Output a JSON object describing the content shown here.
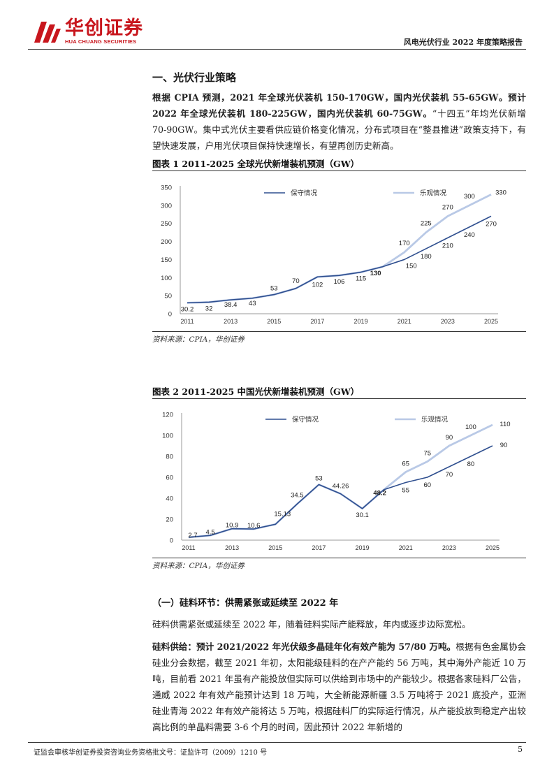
{
  "header": {
    "logo_cn": "华创证券",
    "logo_en": "HUA CHUANG SECURITIES",
    "report_title": "风电光伏行业 2022 年度策略报告"
  },
  "section1": {
    "heading": "一、光伏行业策略",
    "para_bold": "根据 CPIA 预测，2021 年全球光伏装机 150-170GW，国内光伏装机 55-65GW。预计 2022 年全球光伏装机 180-225GW，国内光伏装机 60-75GW。",
    "para_rest": "“十四五”年均光伏新增 70-90GW。集中式光伏主要看供应链价格变化情况，分布式项目在“整县推进”政策支持下，有望快速发展，户用光伏项目保持快速增长，有望再创历史新高。"
  },
  "figure1": {
    "title": "图表 1    2011-2025 全球光伏新增装机预测（GW）",
    "source": "资料来源：CPIA，华创证券"
  },
  "figure2": {
    "title": "图表 2    2011-2025 中国光伏新增装机预测（GW）",
    "source": "资料来源：CPIA，华创证券"
  },
  "chart_data": [
    {
      "type": "line",
      "title": "2011-2025 全球光伏新增装机预测（GW）",
      "x": [
        2011,
        2012,
        2013,
        2014,
        2015,
        2016,
        2017,
        2018,
        2019,
        2020,
        2021,
        2022,
        2023,
        2024,
        2025
      ],
      "x_tick_labels": [
        "2011",
        "2013",
        "2015",
        "2017",
        "2019",
        "2021",
        "2023",
        "2025"
      ],
      "y_ticks": [
        0,
        50,
        100,
        150,
        200,
        250,
        300,
        350
      ],
      "ylim": [
        0,
        350
      ],
      "legend_position": "top",
      "grid": false,
      "series": [
        {
          "name": "保守情况",
          "color": "#2f4f8f",
          "values": [
            30.2,
            32,
            38.4,
            43,
            53,
            70,
            102,
            106,
            115,
            130,
            150,
            180,
            210,
            240,
            270
          ]
        },
        {
          "name": "乐观情况",
          "color": "#b9c9e6",
          "values": [
            30.2,
            32,
            38.4,
            43,
            53,
            70,
            102,
            106,
            115,
            130,
            170,
            225,
            270,
            300,
            330
          ]
        }
      ],
      "data_labels": [
        "30.2",
        "32",
        "38.4",
        "43",
        "53",
        "70",
        "102",
        "106",
        "115",
        "130",
        "150",
        "180",
        "210",
        "240",
        "270",
        "170",
        "225",
        "270",
        "300",
        "330"
      ]
    },
    {
      "type": "line",
      "title": "2011-2025 中国光伏新增装机预测（GW）",
      "x": [
        2011,
        2012,
        2013,
        2014,
        2015,
        2016,
        2017,
        2018,
        2019,
        2020,
        2021,
        2022,
        2023,
        2024,
        2025
      ],
      "x_tick_labels": [
        "2011",
        "2013",
        "2015",
        "2017",
        "2019",
        "2021",
        "2023",
        "2025"
      ],
      "y_ticks": [
        0,
        20,
        40,
        60,
        80,
        100,
        120
      ],
      "ylim": [
        0,
        120
      ],
      "legend_position": "top",
      "grid": false,
      "series": [
        {
          "name": "保守情况",
          "color": "#2f4f8f",
          "values": [
            2.7,
            4.5,
            10.9,
            10.6,
            15.13,
            34.5,
            53,
            44.26,
            30.1,
            48.2,
            55,
            60,
            70,
            80,
            90
          ]
        },
        {
          "name": "乐观情况",
          "color": "#b9c9e6",
          "values": [
            2.7,
            4.5,
            10.9,
            10.6,
            15.13,
            34.5,
            53,
            44.26,
            30.1,
            48.2,
            65,
            75,
            90,
            100,
            110
          ]
        }
      ],
      "data_labels": [
        "2.7",
        "4.5",
        "10.9",
        "10.6",
        "15.13",
        "34.5",
        "53",
        "44.26",
        "30.1",
        "48.2",
        "55",
        "60",
        "70",
        "80",
        "90",
        "65",
        "75",
        "90",
        "100",
        "110"
      ]
    }
  ],
  "section2": {
    "heading": "（一）硅料环节：供需紧张或延续至 2022 年",
    "para1": "硅料供需紧张或延续至 2022 年，随着硅料实际产能释放，年内或逐步边际宽松。",
    "para2_bold": "硅料供给：预计 2021/2022 年光伏级多晶硅年化有效产能为 57/80 万吨。",
    "para2_rest": "根据有色金属协会硅业分会数据，截至 2021 年初，太阳能级硅料的在产产能约 56 万吨，其中海外产能近 10 万吨，目前看 2021 年虽有产能投放但实际可以供给到市场中的产能较少。根据各家硅料厂公告，通威 2022 年有效产能预计达到 18 万吨，大全新能源新疆 3.5 万吨将于 2021 底投产，亚洲硅业青海 2022 年有效产能将达 5 万吨，根据硅料厂的实际运行情况，从产能投放到稳定产出较高比例的单晶料需要 3-6 个月的时间，因此预计 2022 年新增的"
  },
  "footer": {
    "license": "证监会审核华创证券投资咨询业务资格批文号：证监许可（2009）1210 号",
    "page": "5"
  }
}
